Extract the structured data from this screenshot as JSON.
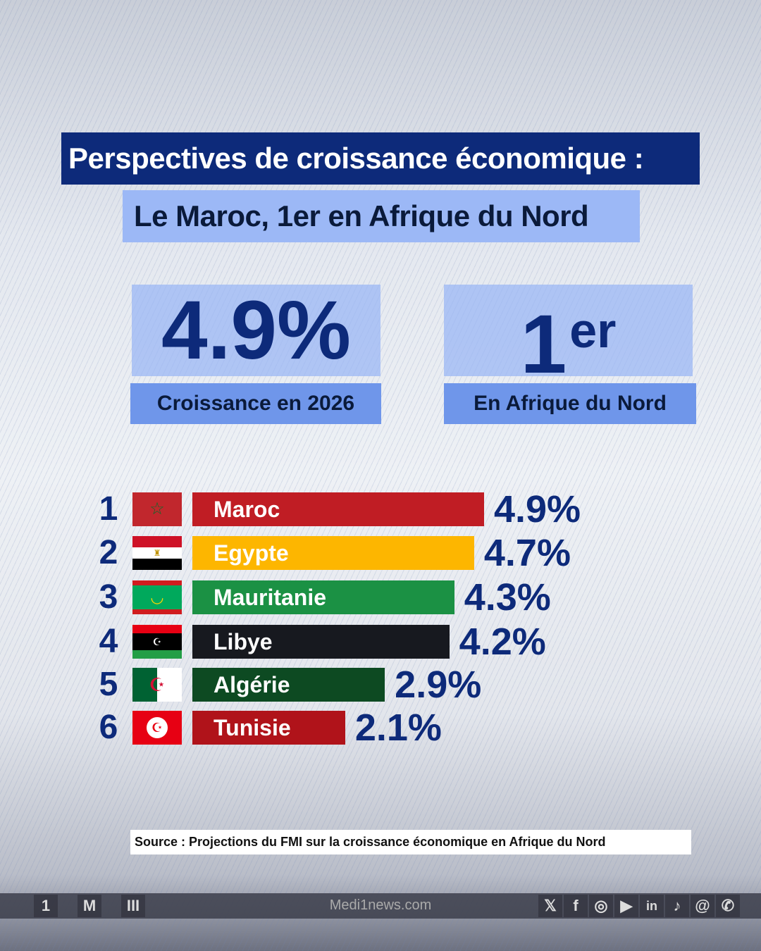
{
  "title": "Perspectives de croissance économique :",
  "subtitle": "Le Maroc, 1er en Afrique du Nord",
  "kpis": [
    {
      "value": "4.9%",
      "label": "Croissance en 2026"
    },
    {
      "value": "1",
      "sup": "er",
      "label": "En Afrique du Nord"
    }
  ],
  "chart_data": {
    "type": "bar",
    "orientation": "horizontal",
    "categories": [
      "Maroc",
      "Egypte",
      "Mauritanie",
      "Libye",
      "Algérie",
      "Tunisie"
    ],
    "ranks": [
      "1",
      "2",
      "3",
      "4",
      "5",
      "6"
    ],
    "values": [
      4.9,
      4.7,
      4.3,
      4.2,
      2.9,
      2.1
    ],
    "labels": [
      "4.9%",
      "4.7%",
      "4.3%",
      "4.2%",
      "2.9%",
      "2.1%"
    ],
    "colors": [
      "#c01d24",
      "#fdb600",
      "#1b9144",
      "#17191f",
      "#0d4a22",
      "#b0131a"
    ]
  },
  "source": "Source : Projections du FMI sur la croissance économique en Afrique du Nord",
  "footer": {
    "website": "Medi1news.com",
    "logos": [
      "1",
      "M",
      "III"
    ],
    "social_icons": [
      "x",
      "facebook",
      "instagram",
      "youtube",
      "linkedin",
      "tiktok",
      "threads",
      "whatsapp"
    ]
  }
}
